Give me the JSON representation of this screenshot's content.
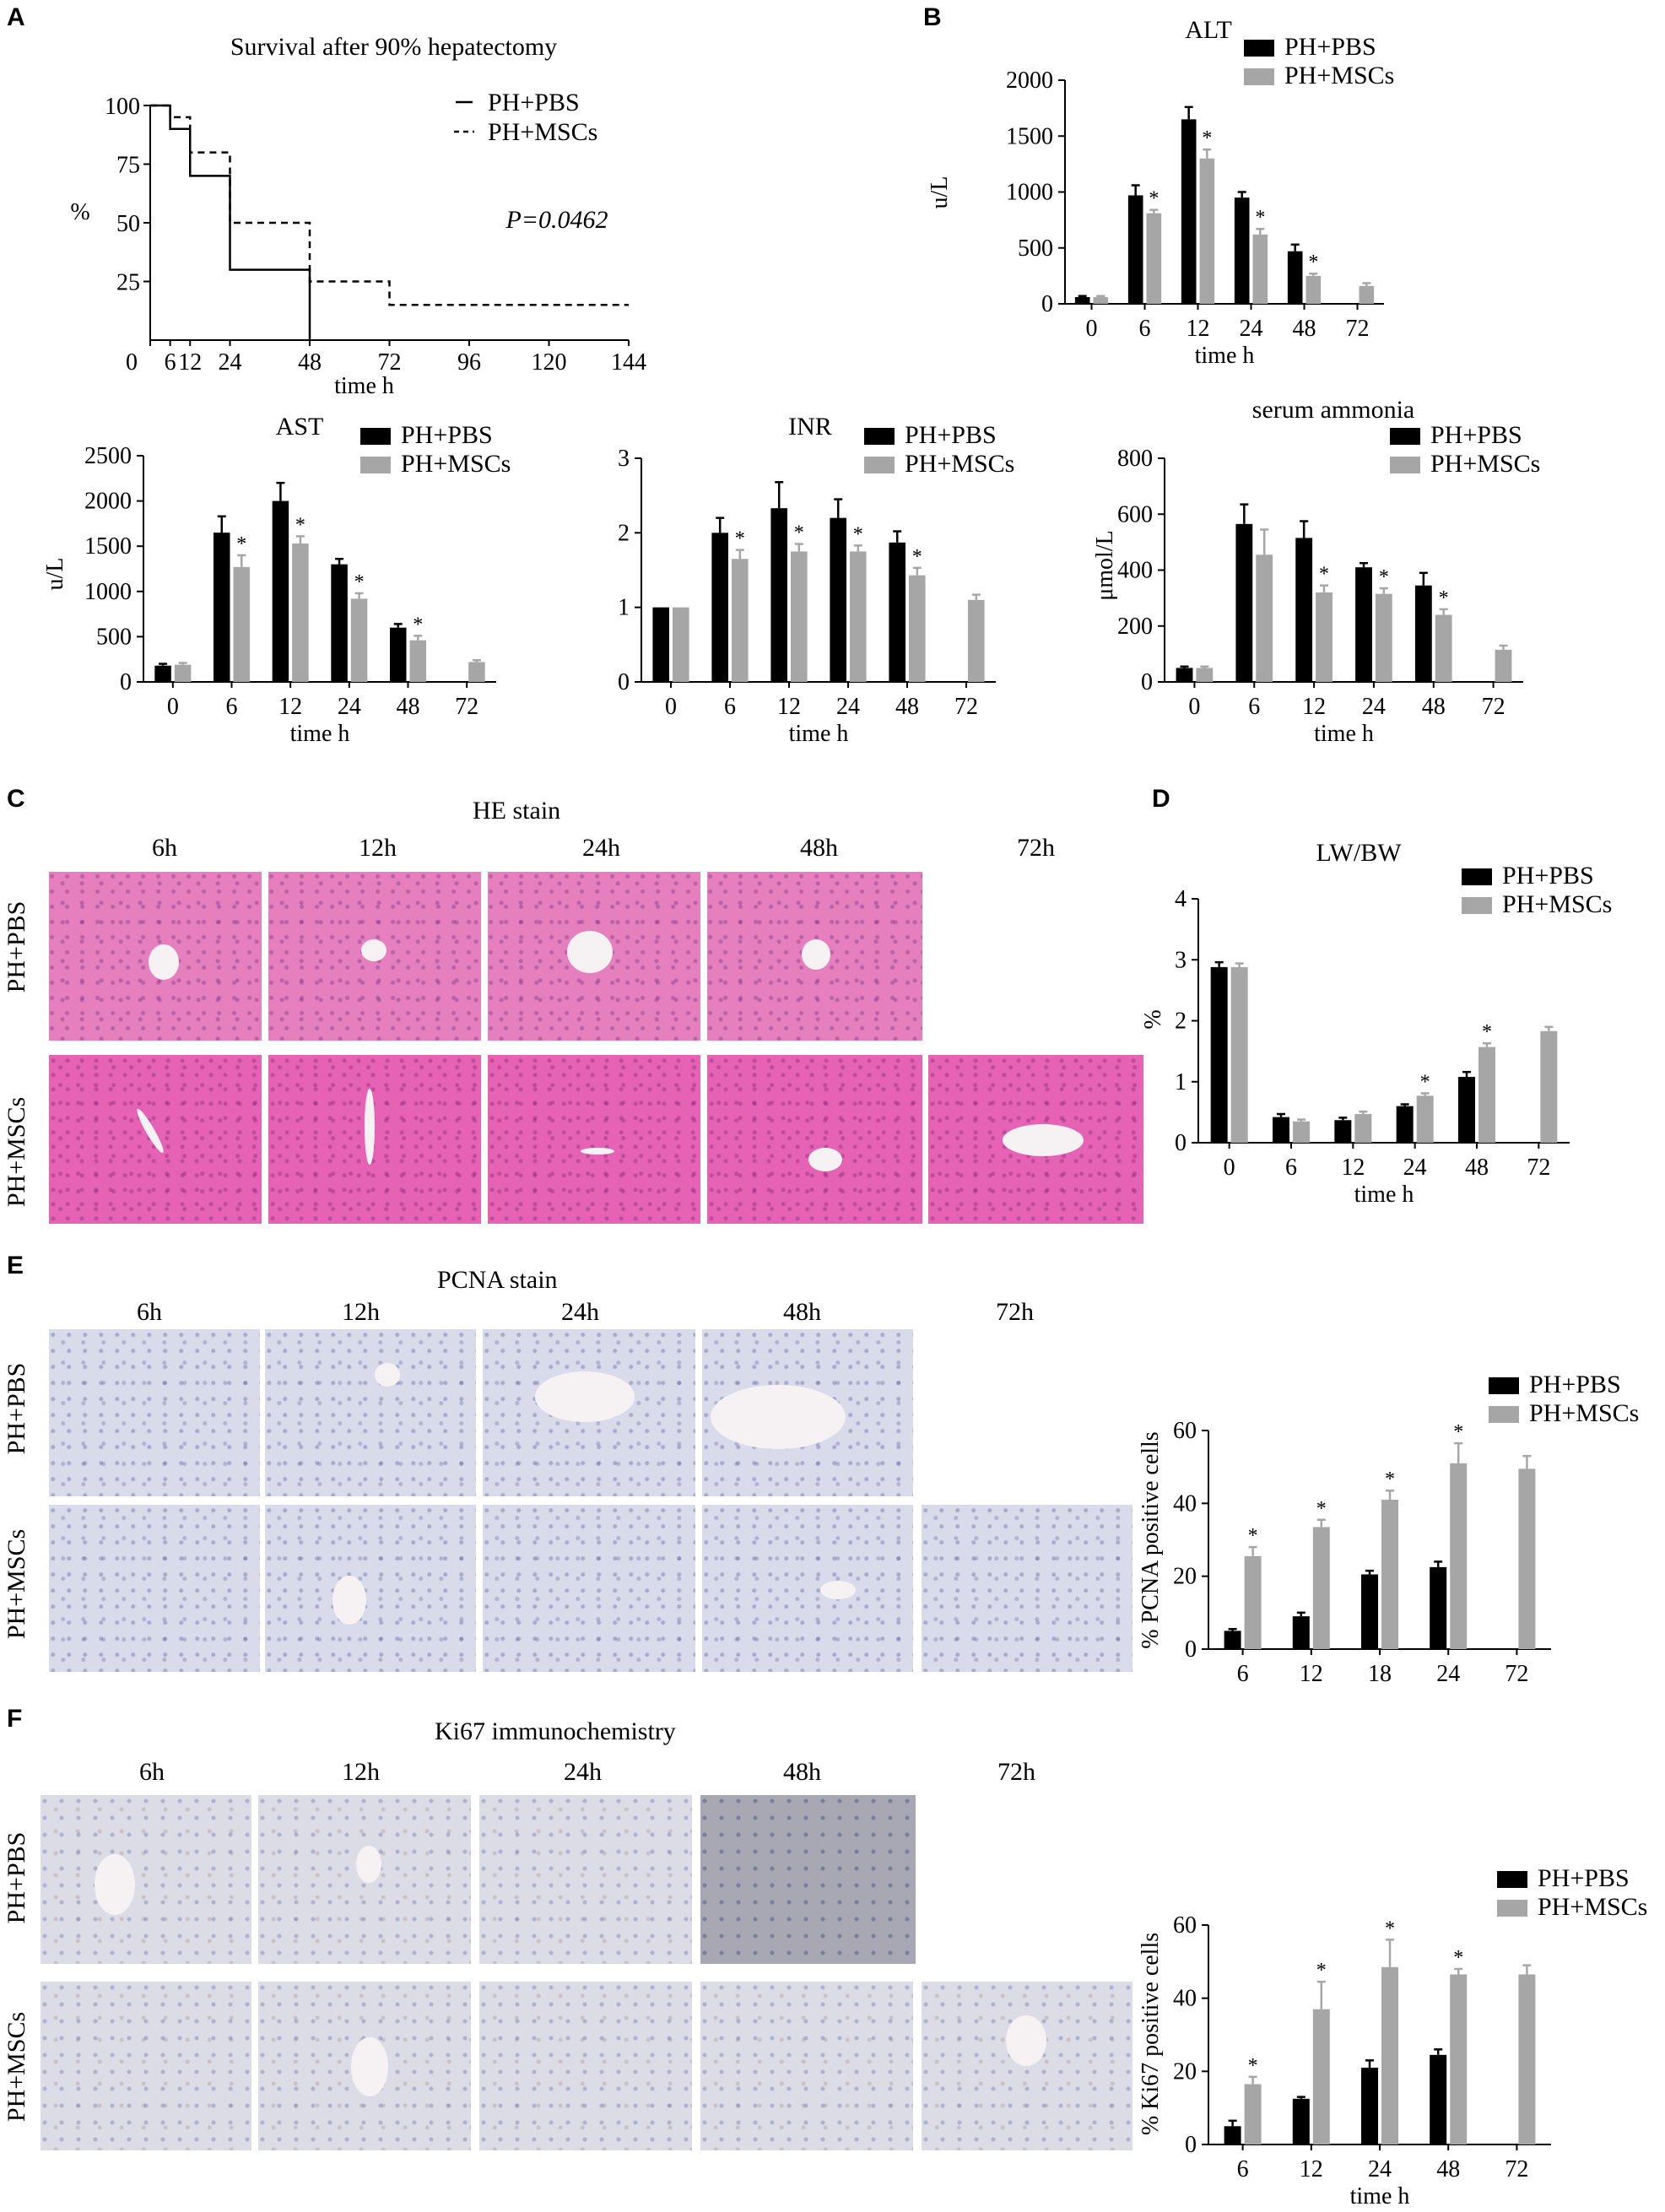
{
  "panels": {
    "A": "A",
    "B": "B",
    "C": "C",
    "D": "D",
    "E": "E",
    "F": "F"
  },
  "series_names": {
    "pbs": "PH+PBS",
    "msc": "PH+MSCs"
  },
  "colors": {
    "pbs": "#000000",
    "msc": "#a6a6a6"
  },
  "chart_data": [
    {
      "id": "survival",
      "type": "line",
      "title": "Survival after 90% hepatectomy",
      "xlabel": "time h",
      "ylabel": "%",
      "xlim": [
        0,
        144
      ],
      "ylim": [
        0,
        100
      ],
      "xticks": [
        0,
        6,
        12,
        24,
        48,
        72,
        96,
        120,
        144
      ],
      "yticks": [
        25,
        50,
        75,
        100
      ],
      "annotation": "P=0.0462",
      "series": [
        {
          "name": "PH+PBS",
          "style": "solid",
          "x": [
            0,
            6,
            6,
            12,
            12,
            24,
            24,
            48,
            48
          ],
          "y": [
            100,
            100,
            90,
            90,
            70,
            70,
            30,
            30,
            0
          ]
        },
        {
          "name": "PH+MSCs",
          "style": "dashed",
          "x": [
            0,
            6,
            6,
            12,
            12,
            24,
            24,
            48,
            48,
            72,
            72,
            144
          ],
          "y": [
            100,
            100,
            95,
            95,
            80,
            80,
            50,
            50,
            25,
            25,
            15,
            15
          ]
        }
      ]
    },
    {
      "id": "alt",
      "type": "bar",
      "title": "ALT",
      "xlabel": "time h",
      "ylabel": "u/L",
      "categories": [
        "0",
        "6",
        "12",
        "24",
        "48",
        "72"
      ],
      "ylim": [
        0,
        2000
      ],
      "yticks": [
        0,
        500,
        1000,
        1500,
        2000
      ],
      "series": [
        {
          "name": "PH+PBS",
          "values": [
            60,
            970,
            1650,
            950,
            470,
            null
          ],
          "err": [
            10,
            90,
            110,
            50,
            60,
            0
          ]
        },
        {
          "name": "PH+MSCs",
          "values": [
            60,
            810,
            1300,
            620,
            250,
            160
          ],
          "err": [
            10,
            30,
            80,
            50,
            20,
            25
          ]
        }
      ],
      "stars": [
        false,
        true,
        true,
        true,
        true,
        false
      ]
    },
    {
      "id": "ast",
      "type": "bar",
      "title": "AST",
      "xlabel": "time h",
      "ylabel": "u/L",
      "categories": [
        "0",
        "6",
        "12",
        "24",
        "48",
        "72"
      ],
      "ylim": [
        0,
        2500
      ],
      "yticks": [
        0,
        500,
        1000,
        1500,
        2000,
        2500
      ],
      "series": [
        {
          "name": "PH+PBS",
          "values": [
            180,
            1650,
            2000,
            1300,
            600,
            null
          ],
          "err": [
            20,
            180,
            200,
            60,
            40,
            0
          ]
        },
        {
          "name": "PH+MSCs",
          "values": [
            190,
            1270,
            1530,
            920,
            460,
            220
          ],
          "err": [
            20,
            130,
            80,
            60,
            50,
            20
          ]
        }
      ],
      "stars": [
        false,
        true,
        true,
        true,
        true,
        false
      ]
    },
    {
      "id": "inr",
      "type": "bar",
      "title": "INR",
      "xlabel": "time h",
      "ylabel": "",
      "categories": [
        "0",
        "6",
        "12",
        "24",
        "48",
        "72"
      ],
      "ylim": [
        0,
        3
      ],
      "yticks": [
        0,
        1,
        2,
        3
      ],
      "series": [
        {
          "name": "PH+PBS",
          "values": [
            1.0,
            2.0,
            2.33,
            2.2,
            1.87,
            null
          ],
          "err": [
            0,
            0.2,
            0.35,
            0.25,
            0.15,
            0
          ]
        },
        {
          "name": "PH+MSCs",
          "values": [
            1.0,
            1.65,
            1.75,
            1.75,
            1.43,
            1.1
          ],
          "err": [
            0,
            0.12,
            0.1,
            0.08,
            0.1,
            0.07
          ]
        }
      ],
      "stars": [
        false,
        true,
        true,
        true,
        true,
        false
      ]
    },
    {
      "id": "ammonia",
      "type": "bar",
      "title": "serum ammonia",
      "xlabel": "time h",
      "ylabel": "μmol/L",
      "categories": [
        "0",
        "6",
        "12",
        "24",
        "48",
        "72"
      ],
      "ylim": [
        0,
        800
      ],
      "yticks": [
        0,
        200,
        400,
        600,
        800
      ],
      "series": [
        {
          "name": "PH+PBS",
          "values": [
            50,
            565,
            515,
            410,
            345,
            null
          ],
          "err": [
            5,
            70,
            60,
            15,
            45,
            0
          ]
        },
        {
          "name": "PH+MSCs",
          "values": [
            50,
            455,
            320,
            315,
            240,
            115
          ],
          "err": [
            5,
            90,
            25,
            20,
            20,
            15
          ]
        }
      ],
      "stars": [
        false,
        false,
        true,
        true,
        true,
        false
      ]
    },
    {
      "id": "lwbw",
      "type": "bar",
      "title": "LW/BW",
      "xlabel": "time h",
      "ylabel": "%",
      "categories": [
        "0",
        "6",
        "12",
        "24",
        "48",
        "72"
      ],
      "ylim": [
        0,
        4
      ],
      "yticks": [
        0,
        1,
        2,
        3,
        4
      ],
      "series": [
        {
          "name": "PH+PBS",
          "values": [
            2.88,
            0.42,
            0.37,
            0.6,
            1.08,
            null
          ],
          "err": [
            0.08,
            0.05,
            0.04,
            0.03,
            0.08,
            0
          ]
        },
        {
          "name": "PH+MSCs",
          "values": [
            2.88,
            0.35,
            0.47,
            0.77,
            1.57,
            1.83
          ],
          "err": [
            0.06,
            0.03,
            0.04,
            0.04,
            0.06,
            0.07
          ]
        }
      ],
      "stars": [
        false,
        false,
        false,
        true,
        true,
        false
      ]
    },
    {
      "id": "pcna",
      "type": "bar",
      "title": "",
      "xlabel": "",
      "ylabel": "% PCNA positive cells",
      "categories": [
        "6",
        "12",
        "18",
        "24",
        "72"
      ],
      "ylim": [
        0,
        60
      ],
      "yticks": [
        0,
        20,
        40,
        60
      ],
      "series": [
        {
          "name": "PH+PBS",
          "values": [
            5,
            9,
            20.5,
            22.5,
            null
          ],
          "err": [
            0.5,
            1,
            1,
            1.5,
            0
          ]
        },
        {
          "name": "PH+MSCs",
          "values": [
            25.5,
            33.5,
            41,
            51,
            49.5
          ],
          "err": [
            2.5,
            2,
            2.5,
            5.5,
            3.5
          ]
        }
      ],
      "stars": [
        true,
        true,
        true,
        true,
        false
      ]
    },
    {
      "id": "ki67",
      "type": "bar",
      "title": "",
      "xlabel": "time h",
      "ylabel": "% Ki67 positive cells",
      "categories": [
        "6",
        "12",
        "24",
        "48",
        "72"
      ],
      "ylim": [
        0,
        60
      ],
      "yticks": [
        0,
        20,
        40,
        60
      ],
      "series": [
        {
          "name": "PH+PBS",
          "values": [
            5,
            12.5,
            21,
            24.5,
            null
          ],
          "err": [
            1.5,
            0.5,
            2,
            1.5,
            0
          ]
        },
        {
          "name": "PH+MSCs",
          "values": [
            16.5,
            37,
            48.5,
            46.5,
            46.5
          ],
          "err": [
            2,
            7.5,
            7.5,
            1.5,
            2.5
          ]
        }
      ],
      "stars": [
        true,
        true,
        true,
        true,
        false
      ]
    }
  ],
  "micrographs": {
    "he_title": "HE stain",
    "pcna_title": "PCNA stain",
    "ki67_title": "Ki67 immunochemistry",
    "times": [
      "6h",
      "12h",
      "24h",
      "48h",
      "72h"
    ],
    "row_pbs": "PH+PBS",
    "row_msc": "PH+MSCs"
  }
}
